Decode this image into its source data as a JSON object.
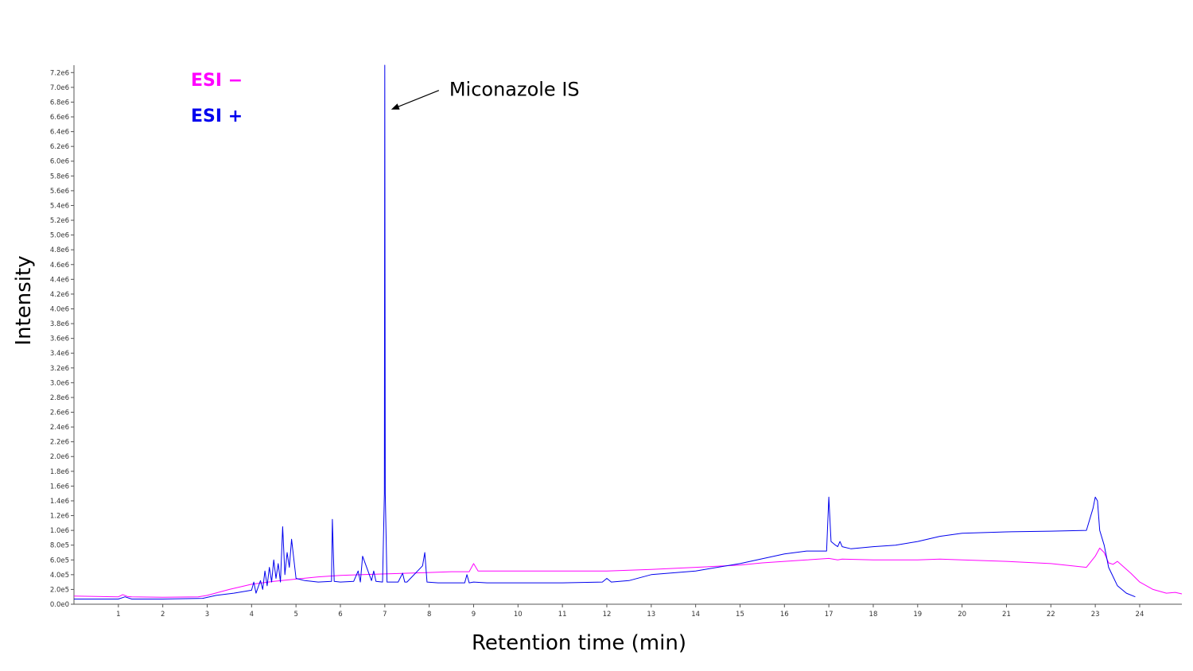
{
  "chart_data": {
    "type": "line",
    "xlabel": "Retention time (min)",
    "ylabel": "Intensity",
    "xlim": [
      0,
      24.95
    ],
    "ylim": [
      0,
      7300000.0
    ],
    "x_ticks": [
      "1",
      "2",
      "3",
      "4",
      "5",
      "6",
      "7",
      "8",
      "9",
      "10",
      "11",
      "12",
      "13",
      "14",
      "15",
      "16",
      "17",
      "18",
      "19",
      "20",
      "21",
      "22",
      "23",
      "24"
    ],
    "y_ticks": [
      "0.0e0",
      "2.0e5",
      "4.0e5",
      "6.0e5",
      "8.0e5",
      "1.0e6",
      "1.2e6",
      "1.4e6",
      "1.6e6",
      "1.8e6",
      "2.0e6",
      "2.2e6",
      "2.4e6",
      "2.6e6",
      "2.8e6",
      "3.0e6",
      "3.2e6",
      "3.4e6",
      "3.6e6",
      "3.8e6",
      "4.0e6",
      "4.2e6",
      "4.4e6",
      "4.6e6",
      "4.8e6",
      "5.0e6",
      "5.2e6",
      "5.4e6",
      "5.6e6",
      "5.8e6",
      "6.0e6",
      "6.2e6",
      "6.4e6",
      "6.6e6",
      "6.8e6",
      "7.0e6",
      "7.2e6"
    ],
    "grid": false,
    "legend_position": "top-left",
    "series": [
      {
        "name": "ESI −",
        "color": "#ff00ff",
        "x": [
          0,
          1.0,
          1.1,
          1.2,
          1.3,
          2.0,
          2.8,
          3.0,
          3.5,
          4.0,
          4.5,
          5.0,
          5.5,
          6.0,
          6.5,
          7.0,
          7.5,
          8.0,
          8.5,
          8.9,
          9.0,
          9.1,
          9.3,
          10.0,
          11.0,
          12.0,
          13.0,
          14.0,
          15.0,
          15.5,
          16.0,
          16.5,
          17.0,
          17.2,
          17.3,
          18.0,
          19.0,
          19.5,
          20.0,
          21.0,
          22.0,
          22.8,
          23.0,
          23.1,
          23.2,
          23.3,
          23.4,
          23.5,
          23.8,
          24.0,
          24.3,
          24.6,
          24.8,
          24.95
        ],
        "y": [
          110000,
          100000,
          130000,
          105000,
          100000,
          95000,
          100000,
          120000,
          200000,
          270000,
          310000,
          340000,
          370000,
          390000,
          400000,
          410000,
          420000,
          430000,
          440000,
          440000,
          550000,
          450000,
          450000,
          450000,
          450000,
          450000,
          470000,
          500000,
          530000,
          560000,
          580000,
          600000,
          620000,
          600000,
          610000,
          600000,
          600000,
          610000,
          600000,
          580000,
          550000,
          500000,
          650000,
          760000,
          700000,
          560000,
          540000,
          580000,
          420000,
          300000,
          200000,
          150000,
          160000,
          140000
        ]
      },
      {
        "name": "ESI +",
        "color": "#0000ee",
        "x": [
          0,
          1.0,
          1.15,
          1.3,
          2.0,
          2.9,
          3.2,
          3.6,
          4.0,
          4.05,
          4.1,
          4.2,
          4.25,
          4.3,
          4.35,
          4.4,
          4.45,
          4.5,
          4.55,
          4.6,
          4.65,
          4.7,
          4.75,
          4.8,
          4.85,
          4.9,
          5.0,
          5.2,
          5.5,
          5.8,
          5.82,
          5.86,
          6.0,
          6.3,
          6.4,
          6.45,
          6.5,
          6.7,
          6.75,
          6.8,
          6.95,
          6.99,
          7.0,
          7.01,
          7.05,
          7.3,
          7.4,
          7.45,
          7.5,
          7.85,
          7.9,
          7.95,
          8.2,
          8.8,
          8.85,
          8.9,
          9.0,
          9.3,
          10.0,
          11.0,
          11.9,
          12.0,
          12.1,
          12.5,
          13.0,
          14.0,
          15.0,
          16.0,
          16.5,
          16.95,
          17.0,
          17.05,
          17.15,
          17.2,
          17.25,
          17.3,
          17.5,
          18.0,
          18.5,
          19.0,
          19.5,
          20.0,
          21.0,
          22.0,
          22.8,
          22.95,
          23.0,
          23.05,
          23.1,
          23.2,
          23.3,
          23.5,
          23.7,
          23.9
        ],
        "y": [
          70000,
          70000,
          100000,
          70000,
          70000,
          80000,
          120000,
          150000,
          190000,
          300000,
          150000,
          320000,
          200000,
          450000,
          250000,
          500000,
          300000,
          600000,
          350000,
          550000,
          300000,
          1050000,
          400000,
          700000,
          500000,
          880000,
          350000,
          320000,
          300000,
          310000,
          1150000,
          310000,
          300000,
          310000,
          450000,
          300000,
          650000,
          320000,
          450000,
          310000,
          300000,
          1500000,
          7300000,
          1500000,
          300000,
          300000,
          420000,
          300000,
          300000,
          520000,
          700000,
          300000,
          290000,
          290000,
          400000,
          290000,
          300000,
          290000,
          290000,
          290000,
          300000,
          350000,
          300000,
          320000,
          400000,
          450000,
          550000,
          680000,
          720000,
          720000,
          1450000,
          850000,
          800000,
          780000,
          850000,
          780000,
          750000,
          780000,
          800000,
          850000,
          920000,
          960000,
          980000,
          990000,
          1000000,
          1300000,
          1450000,
          1400000,
          1000000,
          800000,
          500000,
          250000,
          150000,
          100000
        ]
      }
    ],
    "annotations": [
      {
        "text": "Miconazole IS",
        "x": 7.0,
        "y": 6700000.0
      }
    ]
  }
}
